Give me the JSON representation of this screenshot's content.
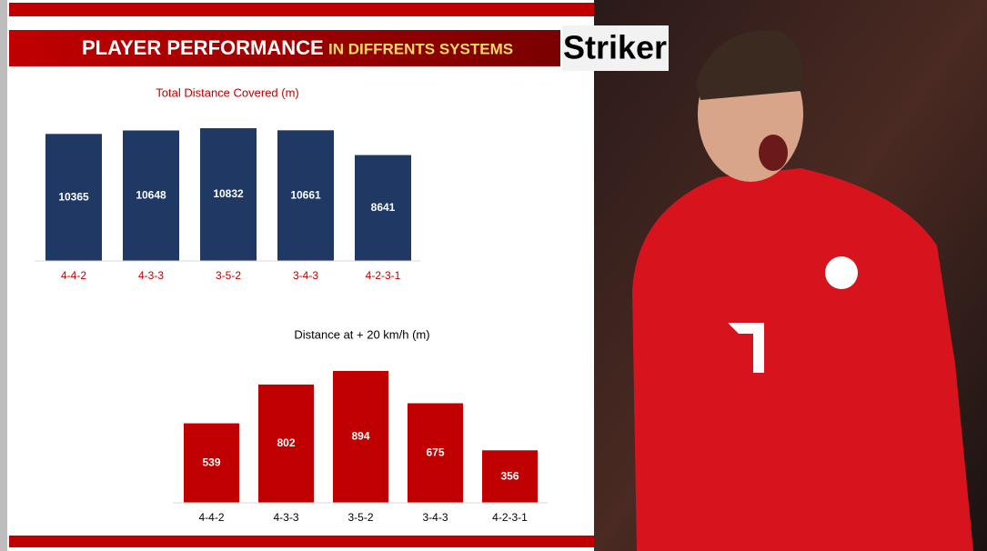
{
  "header": {
    "title": "PLAYER PERFORMANCE",
    "subtitle": "IN DIFFRENTS SYSTEMS",
    "role": "Striker"
  },
  "chart_data": [
    {
      "type": "bar",
      "title": "Total Distance Covered (m)",
      "categories": [
        "4-4-2",
        "4-3-3",
        "3-5-2",
        "3-4-3",
        "4-2-3-1"
      ],
      "values": [
        10365,
        10648,
        10832,
        10661,
        8641
      ],
      "color": "#1f3864",
      "label_color": "#c00000"
    },
    {
      "type": "bar",
      "title": "Distance at + 20 km/h (m)",
      "categories": [
        "4-4-2",
        "4-3-3",
        "3-5-2",
        "3-4-3",
        "4-2-3-1"
      ],
      "values": [
        539,
        802,
        894,
        675,
        356
      ],
      "color": "#c00000",
      "label_color": "#000000"
    }
  ]
}
